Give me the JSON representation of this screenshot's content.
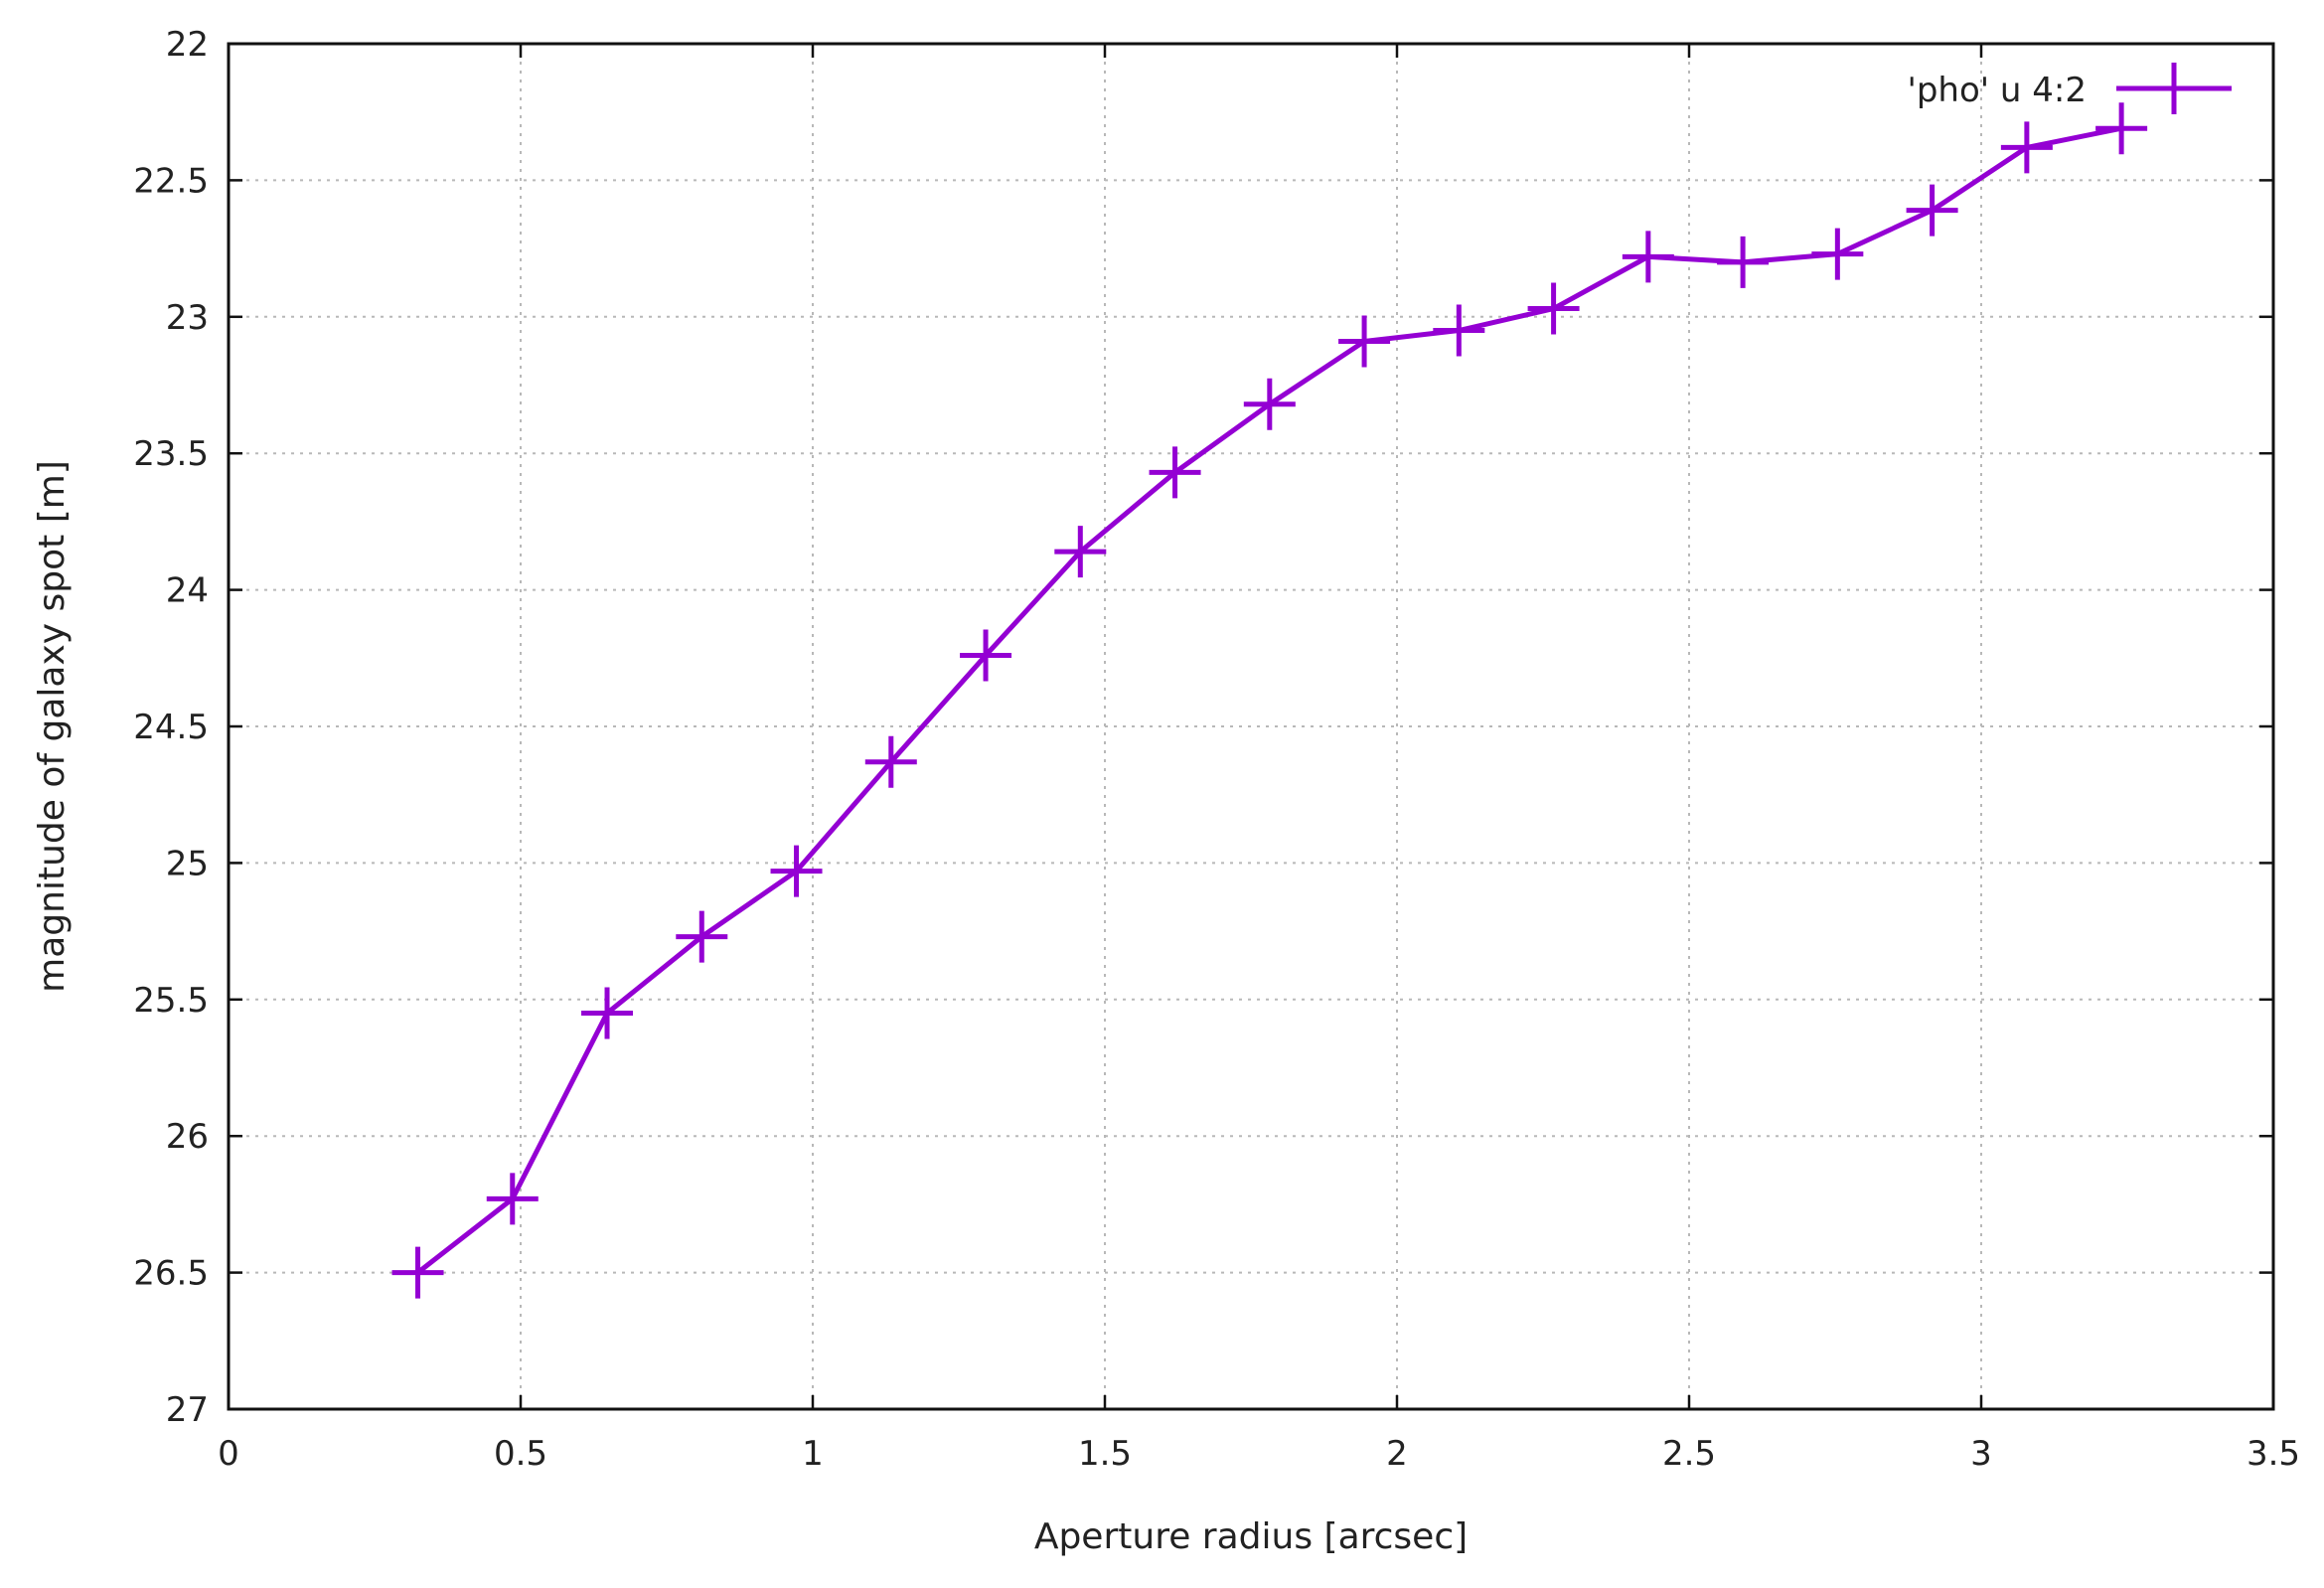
{
  "chart_data": {
    "type": "line",
    "xlabel": "Aperture  radius [arcsec]",
    "ylabel": "magnitude of galaxy spot [m]",
    "xlim": [
      0,
      3.5
    ],
    "ylim": [
      27,
      22
    ],
    "y_inverted": true,
    "grid": true,
    "legend_position": "top-right",
    "xticks": [
      "0",
      "0.5",
      "1",
      "1.5",
      "2",
      "2.5",
      "3",
      "3.5"
    ],
    "xtick_values": [
      0,
      0.5,
      1,
      1.5,
      2,
      2.5,
      3,
      3.5
    ],
    "yticks": [
      "22",
      "22.5",
      "23",
      "23.5",
      "24",
      "24.5",
      "25",
      "25.5",
      "26",
      "26.5",
      "27"
    ],
    "ytick_values": [
      22,
      22.5,
      23,
      23.5,
      24,
      24.5,
      25,
      25.5,
      26,
      26.5,
      27
    ],
    "series": [
      {
        "name": "'pho' u 4:2",
        "color": "#9400d3",
        "marker": "plus",
        "x": [
          0.324,
          0.486,
          0.648,
          0.81,
          0.972,
          1.134,
          1.296,
          1.458,
          1.62,
          1.782,
          1.944,
          2.106,
          2.268,
          2.43,
          2.592,
          2.754,
          2.916,
          3.078,
          3.24
        ],
        "y": [
          26.5,
          26.23,
          25.55,
          25.27,
          25.03,
          24.63,
          24.24,
          23.86,
          23.57,
          23.32,
          23.09,
          23.05,
          22.97,
          22.78,
          22.8,
          22.77,
          22.61,
          22.38,
          22.31
        ]
      }
    ]
  }
}
